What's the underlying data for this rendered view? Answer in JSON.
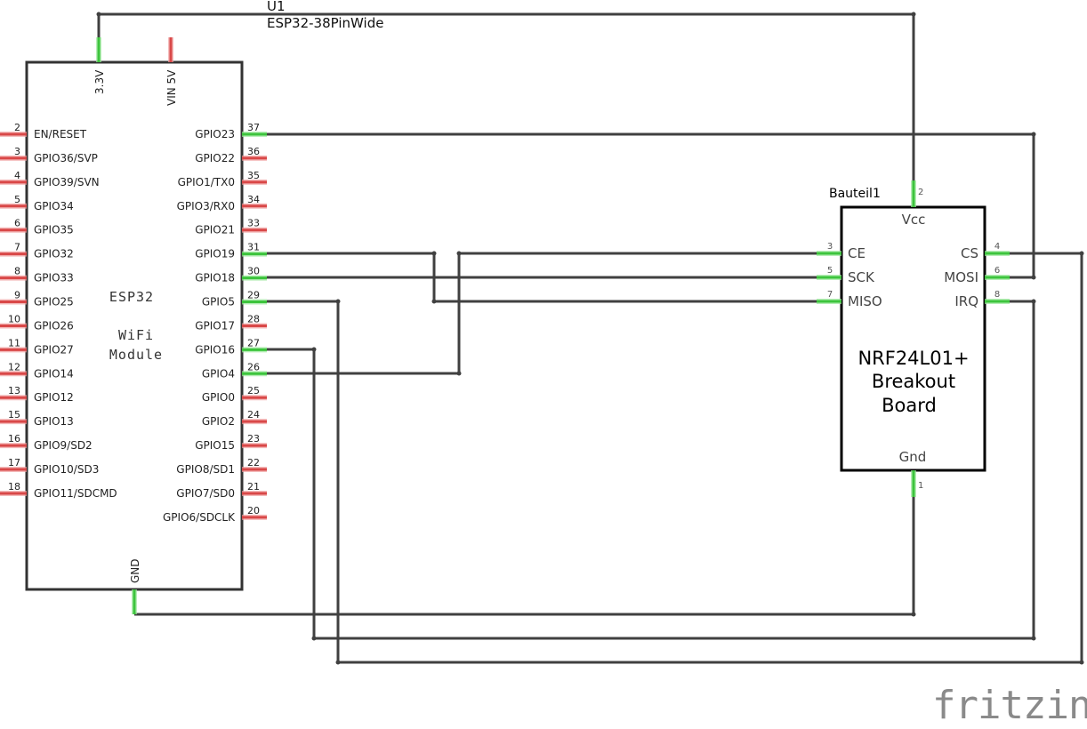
{
  "esp32": {
    "ref": "U1",
    "part": "ESP32-38PinWide",
    "body_text": [
      "ESP32",
      "WiFi",
      "Module"
    ],
    "top_pins": [
      {
        "label": "3.3V",
        "connected": true
      },
      {
        "label": "VIN 5V",
        "connected": false
      }
    ],
    "bottom_pin": {
      "label": "GND",
      "connected": true
    },
    "left_pins": [
      {
        "num": "2",
        "label": "EN/RESET"
      },
      {
        "num": "3",
        "label": "GPIO36/SVP"
      },
      {
        "num": "4",
        "label": "GPIO39/SVN"
      },
      {
        "num": "5",
        "label": "GPIO34"
      },
      {
        "num": "6",
        "label": "GPIO35"
      },
      {
        "num": "7",
        "label": "GPIO32"
      },
      {
        "num": "8",
        "label": "GPIO33"
      },
      {
        "num": "9",
        "label": "GPIO25"
      },
      {
        "num": "10",
        "label": "GPIO26"
      },
      {
        "num": "11",
        "label": "GPIO27"
      },
      {
        "num": "12",
        "label": "GPIO14"
      },
      {
        "num": "13",
        "label": "GPIO12"
      },
      {
        "num": "15",
        "label": "GPIO13"
      },
      {
        "num": "16",
        "label": "GPIO9/SD2"
      },
      {
        "num": "17",
        "label": "GPIO10/SD3"
      },
      {
        "num": "18",
        "label": "GPIO11/SDCMD"
      }
    ],
    "right_pins": [
      {
        "num": "37",
        "label": "GPIO23",
        "connected": true
      },
      {
        "num": "36",
        "label": "GPIO22",
        "connected": false
      },
      {
        "num": "35",
        "label": "GPIO1/TX0",
        "connected": false
      },
      {
        "num": "34",
        "label": "GPIO3/RX0",
        "connected": false
      },
      {
        "num": "33",
        "label": "GPIO21",
        "connected": false
      },
      {
        "num": "31",
        "label": "GPIO19",
        "connected": true
      },
      {
        "num": "30",
        "label": "GPIO18",
        "connected": true
      },
      {
        "num": "29",
        "label": "GPIO5",
        "connected": true
      },
      {
        "num": "28",
        "label": "GPIO17",
        "connected": false
      },
      {
        "num": "27",
        "label": "GPIO16",
        "connected": true
      },
      {
        "num": "26",
        "label": "GPIO4",
        "connected": true
      },
      {
        "num": "25",
        "label": "GPIO0",
        "connected": false
      },
      {
        "num": "24",
        "label": "GPIO2",
        "connected": false
      },
      {
        "num": "23",
        "label": "GPIO15",
        "connected": false
      },
      {
        "num": "22",
        "label": "GPIO8/SD1",
        "connected": false
      },
      {
        "num": "21",
        "label": "GPIO7/SD0",
        "connected": false
      },
      {
        "num": "20",
        "label": "GPIO6/SDCLK",
        "connected": false
      }
    ]
  },
  "nrf": {
    "ref": "Bauteil1",
    "title_lines": [
      "NRF24L01+",
      "Breakout",
      "Board"
    ],
    "top_pin": {
      "num": "2",
      "label": "Vcc"
    },
    "bottom_pin": {
      "num": "1",
      "label": "Gnd"
    },
    "left_pins": [
      {
        "num": "3",
        "label": "CE"
      },
      {
        "num": "5",
        "label": "SCK"
      },
      {
        "num": "7",
        "label": "MISO"
      }
    ],
    "right_pins": [
      {
        "num": "4",
        "label": "CS"
      },
      {
        "num": "6",
        "label": "MOSI"
      },
      {
        "num": "8",
        "label": "IRQ"
      }
    ]
  },
  "connections": [
    [
      "3.3V",
      "Vcc"
    ],
    [
      "GPIO23",
      "MOSI"
    ],
    [
      "GPIO19",
      "MISO"
    ],
    [
      "GPIO18",
      "SCK"
    ],
    [
      "GPIO5",
      "CS"
    ],
    [
      "GPIO16",
      "IRQ"
    ],
    [
      "GPIO4",
      "CE"
    ],
    [
      "GND",
      "Gnd"
    ]
  ],
  "logo": "fritzing",
  "colors": {
    "connected_pin": "#3dc43d",
    "unconnected_pin": "#d94848",
    "wire": "#404040"
  }
}
